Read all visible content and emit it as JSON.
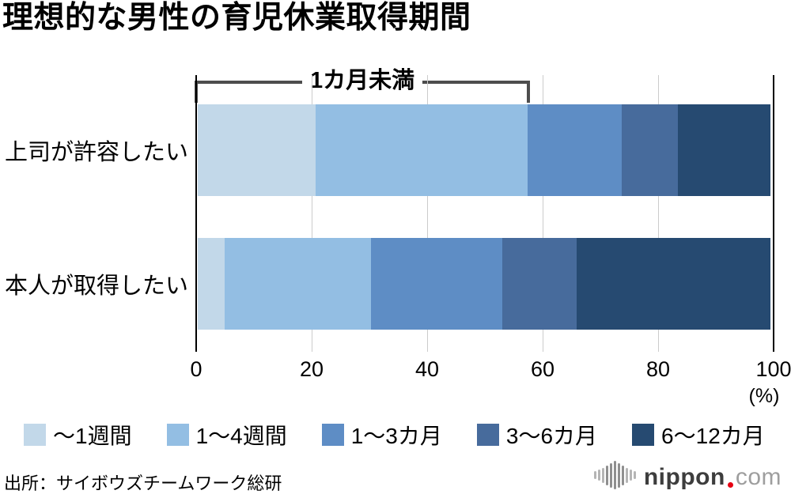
{
  "title": "理想的な男性の育児休業取得期間",
  "chart_data": {
    "type": "bar",
    "orientation": "horizontal",
    "stacked": true,
    "categories": [
      "上司が許容したい",
      "本人が取得したい"
    ],
    "series": [
      {
        "name": "～1週間",
        "color": "#c2d8e9",
        "values": [
          20.6,
          4.7
        ]
      },
      {
        "name": "1～4週間",
        "color": "#93bee3",
        "values": [
          37.0,
          25.6
        ]
      },
      {
        "name": "1～3カ月",
        "color": "#5e8dc5",
        "values": [
          16.4,
          22.9
        ]
      },
      {
        "name": "3～6カ月",
        "color": "#476b9c",
        "values": [
          9.9,
          12.9
        ]
      },
      {
        "name": "6～12カ月",
        "color": "#264a71",
        "values": [
          16.1,
          33.9
        ]
      }
    ],
    "xlim": [
      0,
      100
    ],
    "xticks": [
      0,
      20,
      40,
      60,
      80,
      100
    ],
    "unit_label": "(%)",
    "annotation": {
      "text": "1カ月未満",
      "applies_to": "上司が許容したい",
      "from_percent": 0,
      "to_percent": 57.6
    },
    "legend_position": "bottom",
    "grid": "vertical"
  },
  "footer": {
    "source": "出所：サイボウズチームワーク総研"
  },
  "logo": {
    "icon": "soundwave-icon",
    "name": "nippon",
    "tld": "com",
    "text_color": "#3d3d3d",
    "tld_color": "#9e9e9e",
    "dot_color": "#e60012"
  }
}
